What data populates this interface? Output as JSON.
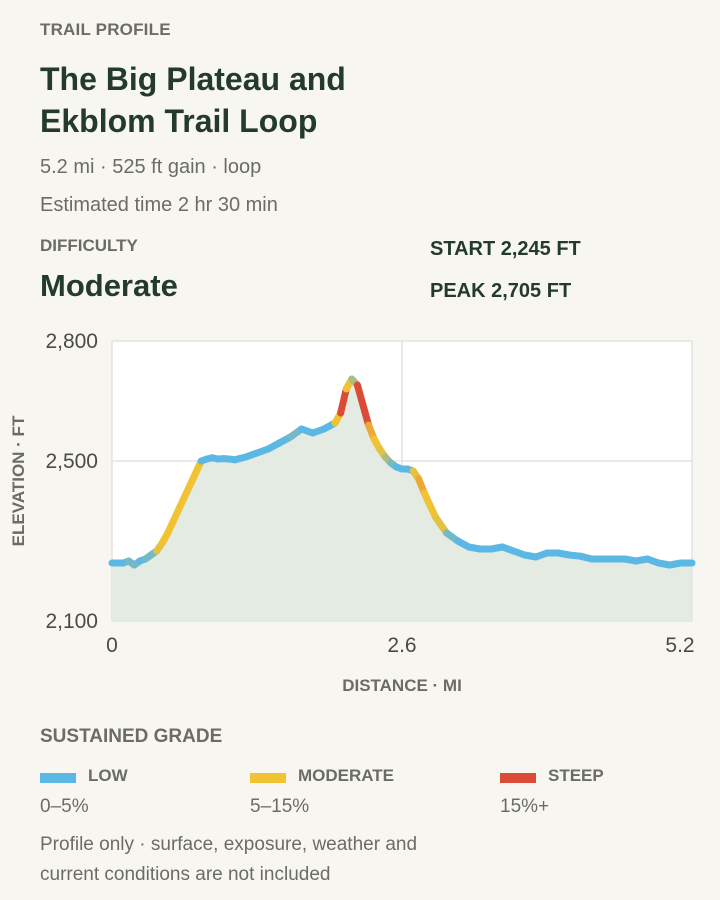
{
  "header": {
    "eyebrow": "TRAIL PROFILE",
    "title": "The Big Plateau and Ekblom Trail Loop",
    "distance_line": "5.2 mi · 525 ft gain · loop",
    "estimated_line": "Estimated time 2 hr 30 min"
  },
  "difficulty": {
    "label": "DIFFICULTY",
    "value": "Moderate"
  },
  "stats": {
    "start": "START 2,245 FT",
    "peak": "PEAK 2,705 FT"
  },
  "colors": {
    "low": "#5bb8e4",
    "moderate": "#f1c232",
    "steep": "#dc4b36",
    "area_fill": "#e3ebe3",
    "grid": "#e4e4e1",
    "plot_bg": "#ffffff"
  },
  "chart_data": {
    "type": "area",
    "title": "",
    "xlabel": "DISTANCE · MI",
    "ylabel": "ELEVATION · FT",
    "xlim": [
      0,
      5.2
    ],
    "ylim": [
      2100,
      2800
    ],
    "x_ticks": [
      "0",
      "2.6",
      "5.2"
    ],
    "y_ticks": [
      "2,800",
      "2,500",
      "2,100"
    ],
    "x_tick_values": [
      0,
      2.6,
      5.2
    ],
    "y_tick_values": [
      2800,
      2500,
      2100
    ],
    "grid": true,
    "series": [
      {
        "x": [
          0,
          0.1,
          0.15,
          0.2,
          0.25,
          0.3,
          0.35,
          0.4,
          0.45,
          0.5,
          0.55,
          0.6,
          0.65,
          0.7,
          0.75,
          0.8,
          0.85,
          0.9,
          0.95,
          1.0,
          1.05,
          1.1,
          1.2,
          1.3,
          1.4,
          1.5,
          1.6,
          1.7,
          1.8,
          1.9,
          2.0,
          2.05,
          2.1,
          2.15,
          2.2,
          2.25,
          2.3,
          2.35,
          2.4,
          2.45,
          2.5,
          2.55,
          2.6,
          2.65,
          2.7,
          2.75,
          2.8,
          2.85,
          2.9,
          2.95,
          3.0,
          3.1,
          3.2,
          3.3,
          3.4,
          3.5,
          3.6,
          3.7,
          3.8,
          3.9,
          4.0,
          4.1,
          4.2,
          4.3,
          4.4,
          4.5,
          4.6,
          4.7,
          4.8,
          4.9,
          5.0,
          5.1,
          5.2
        ],
        "y": [
          2245,
          2245,
          2250,
          2240,
          2250,
          2255,
          2265,
          2275,
          2295,
          2320,
          2350,
          2380,
          2410,
          2440,
          2470,
          2500,
          2505,
          2508,
          2505,
          2506,
          2505,
          2503,
          2510,
          2520,
          2530,
          2545,
          2560,
          2580,
          2570,
          2580,
          2595,
          2620,
          2680,
          2705,
          2690,
          2640,
          2590,
          2555,
          2530,
          2510,
          2495,
          2485,
          2480,
          2480,
          2475,
          2455,
          2420,
          2390,
          2360,
          2340,
          2320,
          2300,
          2285,
          2280,
          2280,
          2285,
          2275,
          2265,
          2260,
          2270,
          2270,
          2265,
          2262,
          2255,
          2255,
          2255,
          2255,
          2250,
          2255,
          2245,
          2240,
          2245,
          2245
        ]
      }
    ]
  },
  "legend": {
    "title": "SUSTAINED GRADE",
    "items": [
      {
        "name": "LOW",
        "range": "0–5%"
      },
      {
        "name": "MODERATE",
        "range": "5–15%"
      },
      {
        "name": "STEEP",
        "range": "15%+"
      }
    ]
  },
  "footnote": "Profile only · surface, exposure, weather and current conditions are not included"
}
